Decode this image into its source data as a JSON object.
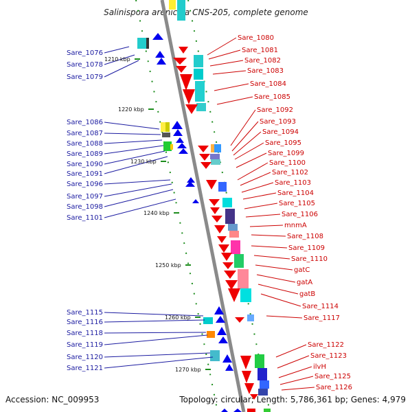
{
  "title": "Salinispora arenicola CNS-205, complete genome",
  "accession": "Accession: NC_009953",
  "topology": "Topology: circular; Length: 5,786,361 bp; Genes: 4,979",
  "colors": {
    "axis": "#8a8a8a",
    "dots": "#1c8c1c",
    "minus_strand": "#0000ee",
    "plus_strand": "#ee0000",
    "left_label": "#1a1aa0",
    "right_label": "#cc0000"
  },
  "kbp_ticks": [
    "1210 kbp",
    "1220 kbp",
    "1230 kbp",
    "1240 kbp",
    "1250 kbp",
    "1260 kbp",
    "1270 kbp"
  ],
  "left_labels": [
    "Sare_1076",
    "Sare_1078",
    "Sare_1079",
    "Sare_1086",
    "Sare_1087",
    "Sare_1088",
    "Sare_1089",
    "Sare_1090",
    "Sare_1091",
    "Sare_1096",
    "Sare_1097",
    "Sare_1098",
    "Sare_1101",
    "Sare_1115",
    "Sare_1116",
    "Sare_1118",
    "Sare_1119",
    "Sare_1120",
    "Sare_1121"
  ],
  "right_labels": [
    "Sare_1080",
    "Sare_1081",
    "Sare_1082",
    "Sare_1083",
    "Sare_1084",
    "Sare_1085",
    "Sare_1092",
    "Sare_1093",
    "Sare_1094",
    "Sare_1095",
    "Sare_1099",
    "Sare_1100",
    "Sare_1102",
    "Sare_1103",
    "Sare_1104",
    "Sare_1105",
    "Sare_1106",
    "mnmA",
    "Sare_1108",
    "Sare_1109",
    "Sare_1110",
    "gatC",
    "gatA",
    "gatB",
    "Sare_1114",
    "Sare_1117",
    "Sare_1122",
    "Sare_1123",
    "ilvH",
    "Sare_1125",
    "Sare_1126"
  ]
}
